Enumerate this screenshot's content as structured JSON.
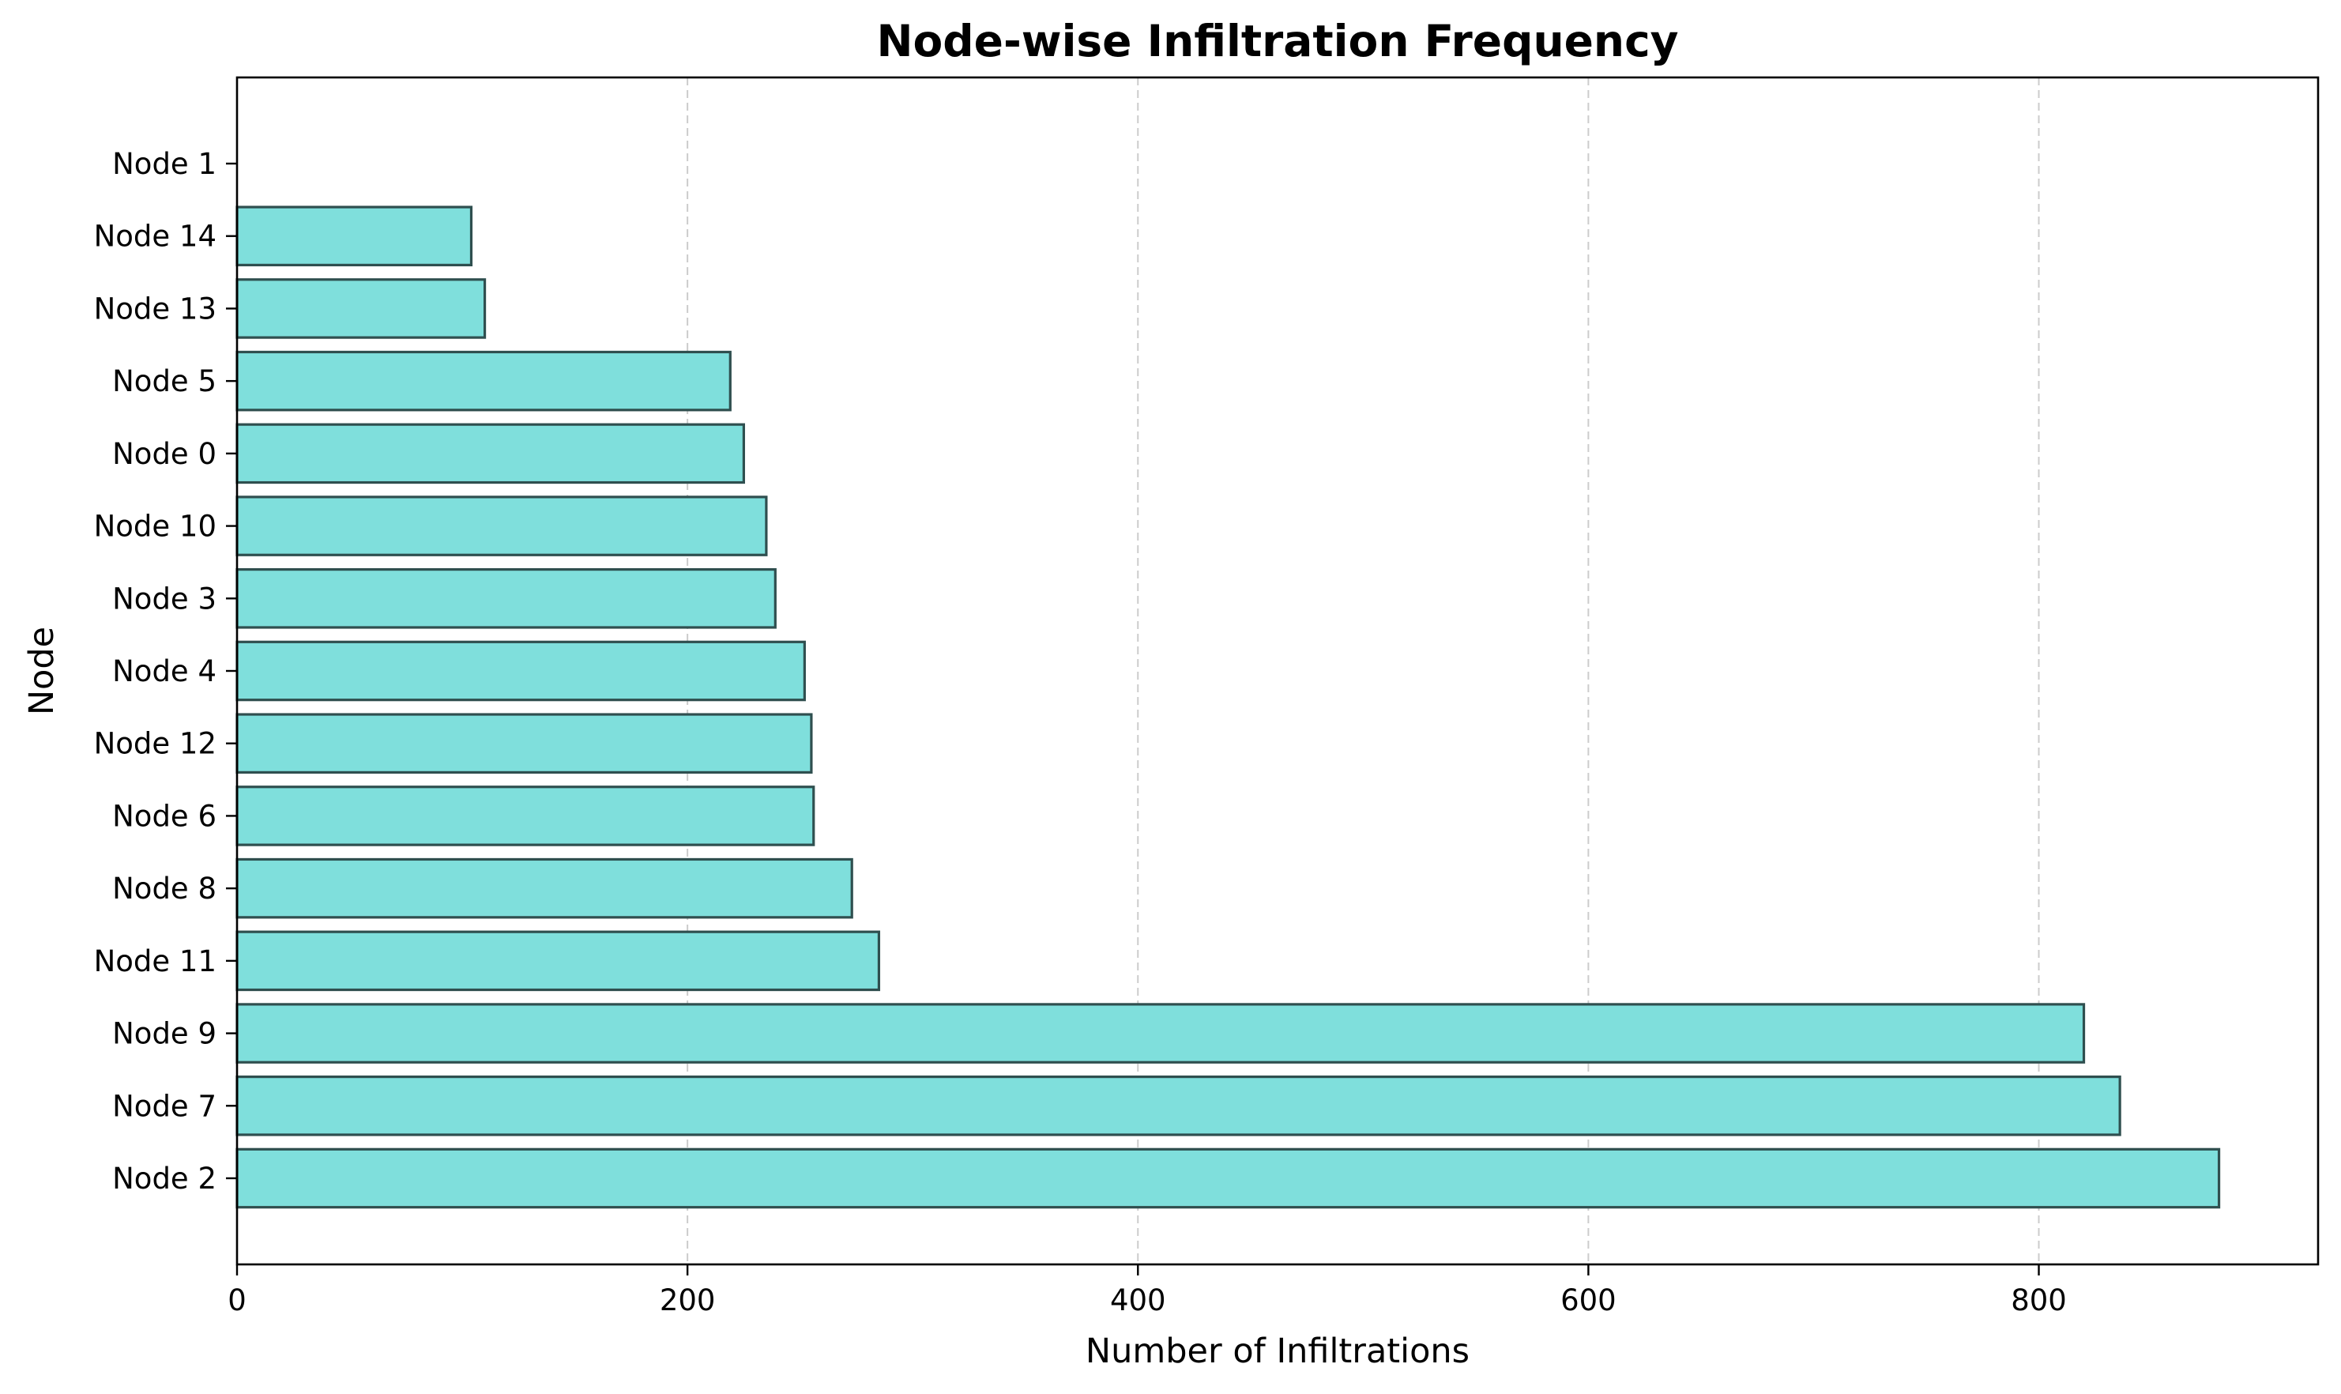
{
  "chart_data": {
    "type": "bar",
    "orientation": "horizontal",
    "title": "Node-wise Infiltration Frequency",
    "xlabel": "Number of Infiltrations",
    "ylabel": "Node",
    "xlim": [
      0,
      924
    ],
    "xticks": [
      0,
      200,
      400,
      600,
      800
    ],
    "grid": "x-dashed",
    "bar_color": "#7fdfdc",
    "edge_color": "#2f4f4f",
    "categories": [
      "Node 1",
      "Node 14",
      "Node 13",
      "Node 5",
      "Node 0",
      "Node 10",
      "Node 3",
      "Node 4",
      "Node 12",
      "Node 6",
      "Node 8",
      "Node 11",
      "Node 9",
      "Node 7",
      "Node 2"
    ],
    "values": [
      0,
      104,
      110,
      219,
      225,
      235,
      239,
      252,
      255,
      256,
      273,
      285,
      820,
      836,
      880
    ]
  }
}
